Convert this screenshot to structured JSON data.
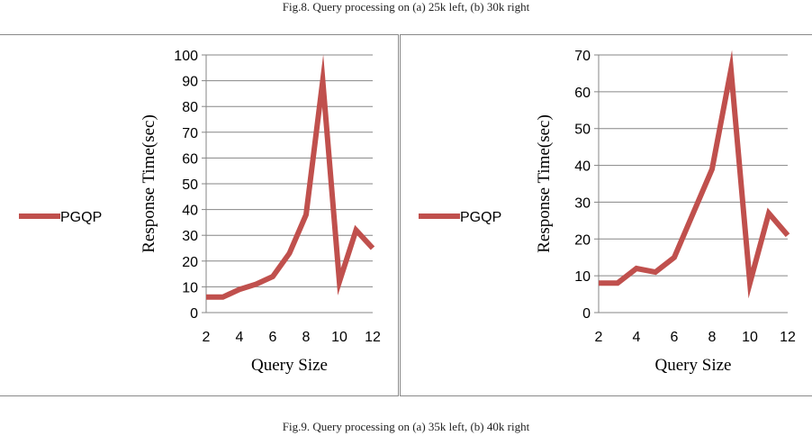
{
  "captions": {
    "top": "Fig.8. Query processing on (a) 25k left, (b) 30k right",
    "bottom": "Fig.9. Query processing on (a) 35k left, (b) 40k right"
  },
  "colors": {
    "series": "#c0504d",
    "grid": "#868686",
    "axis": "#868686"
  },
  "chart_data": [
    {
      "type": "line",
      "xlabel": "Query Size",
      "ylabel": "Response Time(sec)",
      "xlim": [
        2,
        12
      ],
      "ylim": [
        0,
        100
      ],
      "yticks": [
        0,
        10,
        20,
        30,
        40,
        50,
        60,
        70,
        80,
        90,
        100
      ],
      "xticks": [
        2,
        4,
        6,
        8,
        10,
        12
      ],
      "grid": true,
      "legend": "left",
      "series": [
        {
          "name": "PGQP",
          "x": [
            2,
            3,
            4,
            5,
            6,
            7,
            8,
            9,
            10,
            11,
            12
          ],
          "values": [
            6,
            6,
            9,
            11,
            14,
            23,
            38,
            90,
            12,
            32,
            25
          ]
        }
      ]
    },
    {
      "type": "line",
      "xlabel": "Query Size",
      "ylabel": "Response Time(sec)",
      "xlim": [
        2,
        12
      ],
      "ylim": [
        0,
        70
      ],
      "yticks": [
        0,
        10,
        20,
        30,
        40,
        50,
        60,
        70
      ],
      "xticks": [
        2,
        4,
        6,
        8,
        10,
        12
      ],
      "grid": true,
      "legend": "left",
      "series": [
        {
          "name": "PGQP",
          "x": [
            2,
            3,
            4,
            5,
            6,
            7,
            8,
            9,
            10,
            11,
            12
          ],
          "values": [
            8,
            8,
            12,
            11,
            15,
            27,
            39,
            66,
            8,
            27,
            21
          ]
        }
      ]
    }
  ]
}
